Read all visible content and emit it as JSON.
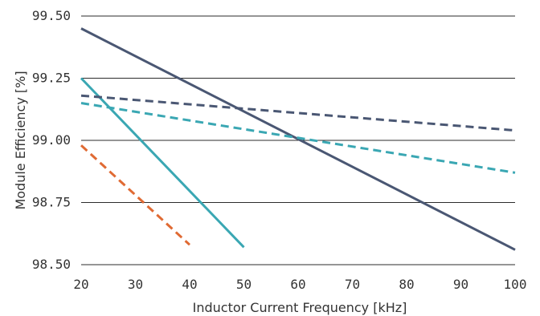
{
  "chart_data": {
    "type": "line",
    "xlabel": "Inductor Current Frequency [kHz]",
    "ylabel": "Module Efficiency [%]",
    "xlim": [
      20,
      100
    ],
    "ylim": [
      98.5,
      99.5
    ],
    "x_ticks": [
      "20",
      "30",
      "40",
      "50",
      "60",
      "70",
      "80",
      "90",
      "100"
    ],
    "y_ticks": [
      "99.50",
      "99.25",
      "99.00",
      "98.75",
      "98.50"
    ],
    "grid": "horizontal",
    "legend": "none",
    "series": [
      {
        "color": "#4a5773",
        "style": "solid",
        "x": [
          20,
          100
        ],
        "y": [
          99.45,
          98.56
        ]
      },
      {
        "color": "#3aa7b3",
        "style": "solid",
        "x": [
          20,
          50
        ],
        "y": [
          99.25,
          98.57
        ]
      },
      {
        "color": "#4a5773",
        "style": "dashed",
        "x": [
          20,
          100
        ],
        "y": [
          99.18,
          99.04
        ]
      },
      {
        "color": "#3aa7b3",
        "style": "dashed",
        "x": [
          20,
          100
        ],
        "y": [
          99.15,
          98.87
        ]
      },
      {
        "color": "#e06a33",
        "style": "dashed",
        "x": [
          20,
          40
        ],
        "y": [
          98.98,
          98.58
        ]
      }
    ]
  }
}
